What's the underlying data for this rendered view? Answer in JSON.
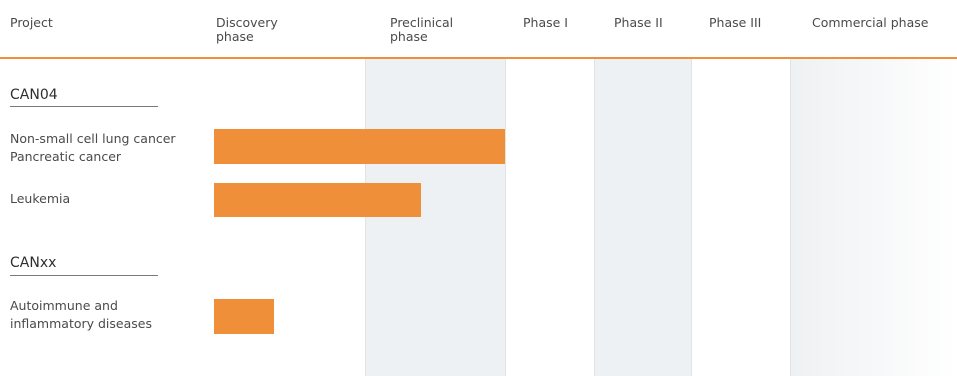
{
  "headers": {
    "project": "Project",
    "discovery": "Discovery\nphase",
    "preclinical": "Preclinical\nphase",
    "phase1": "Phase I",
    "phase2": "Phase II",
    "phase3": "Phase III",
    "commercial": "Commercial phase"
  },
  "groups": [
    {
      "title": "CAN04",
      "rows": [
        {
          "label": "Non-small cell lung cancer\nPancreatic cancer"
        },
        {
          "label": "Leukemia"
        }
      ]
    },
    {
      "title": "CANxx",
      "rows": [
        {
          "label": "Autoimmune and\ninflammatory diseases"
        }
      ]
    }
  ],
  "chart_data": {
    "type": "bar",
    "orientation": "horizontal",
    "stages": [
      "Discovery phase",
      "Preclinical phase",
      "Phase I",
      "Phase II",
      "Phase III",
      "Commercial phase"
    ],
    "categories": [
      "Non-small cell lung cancer / Pancreatic cancer",
      "Leukemia",
      "Autoimmune and inflammatory diseases"
    ],
    "values": [
      2.0,
      1.4,
      0.4
    ],
    "value_unit": "stages completed (from start of Discovery phase)",
    "bar_color": "#ef8f3a",
    "accent_color": "#ef8f3a",
    "shade_color": "#eef1f3"
  }
}
